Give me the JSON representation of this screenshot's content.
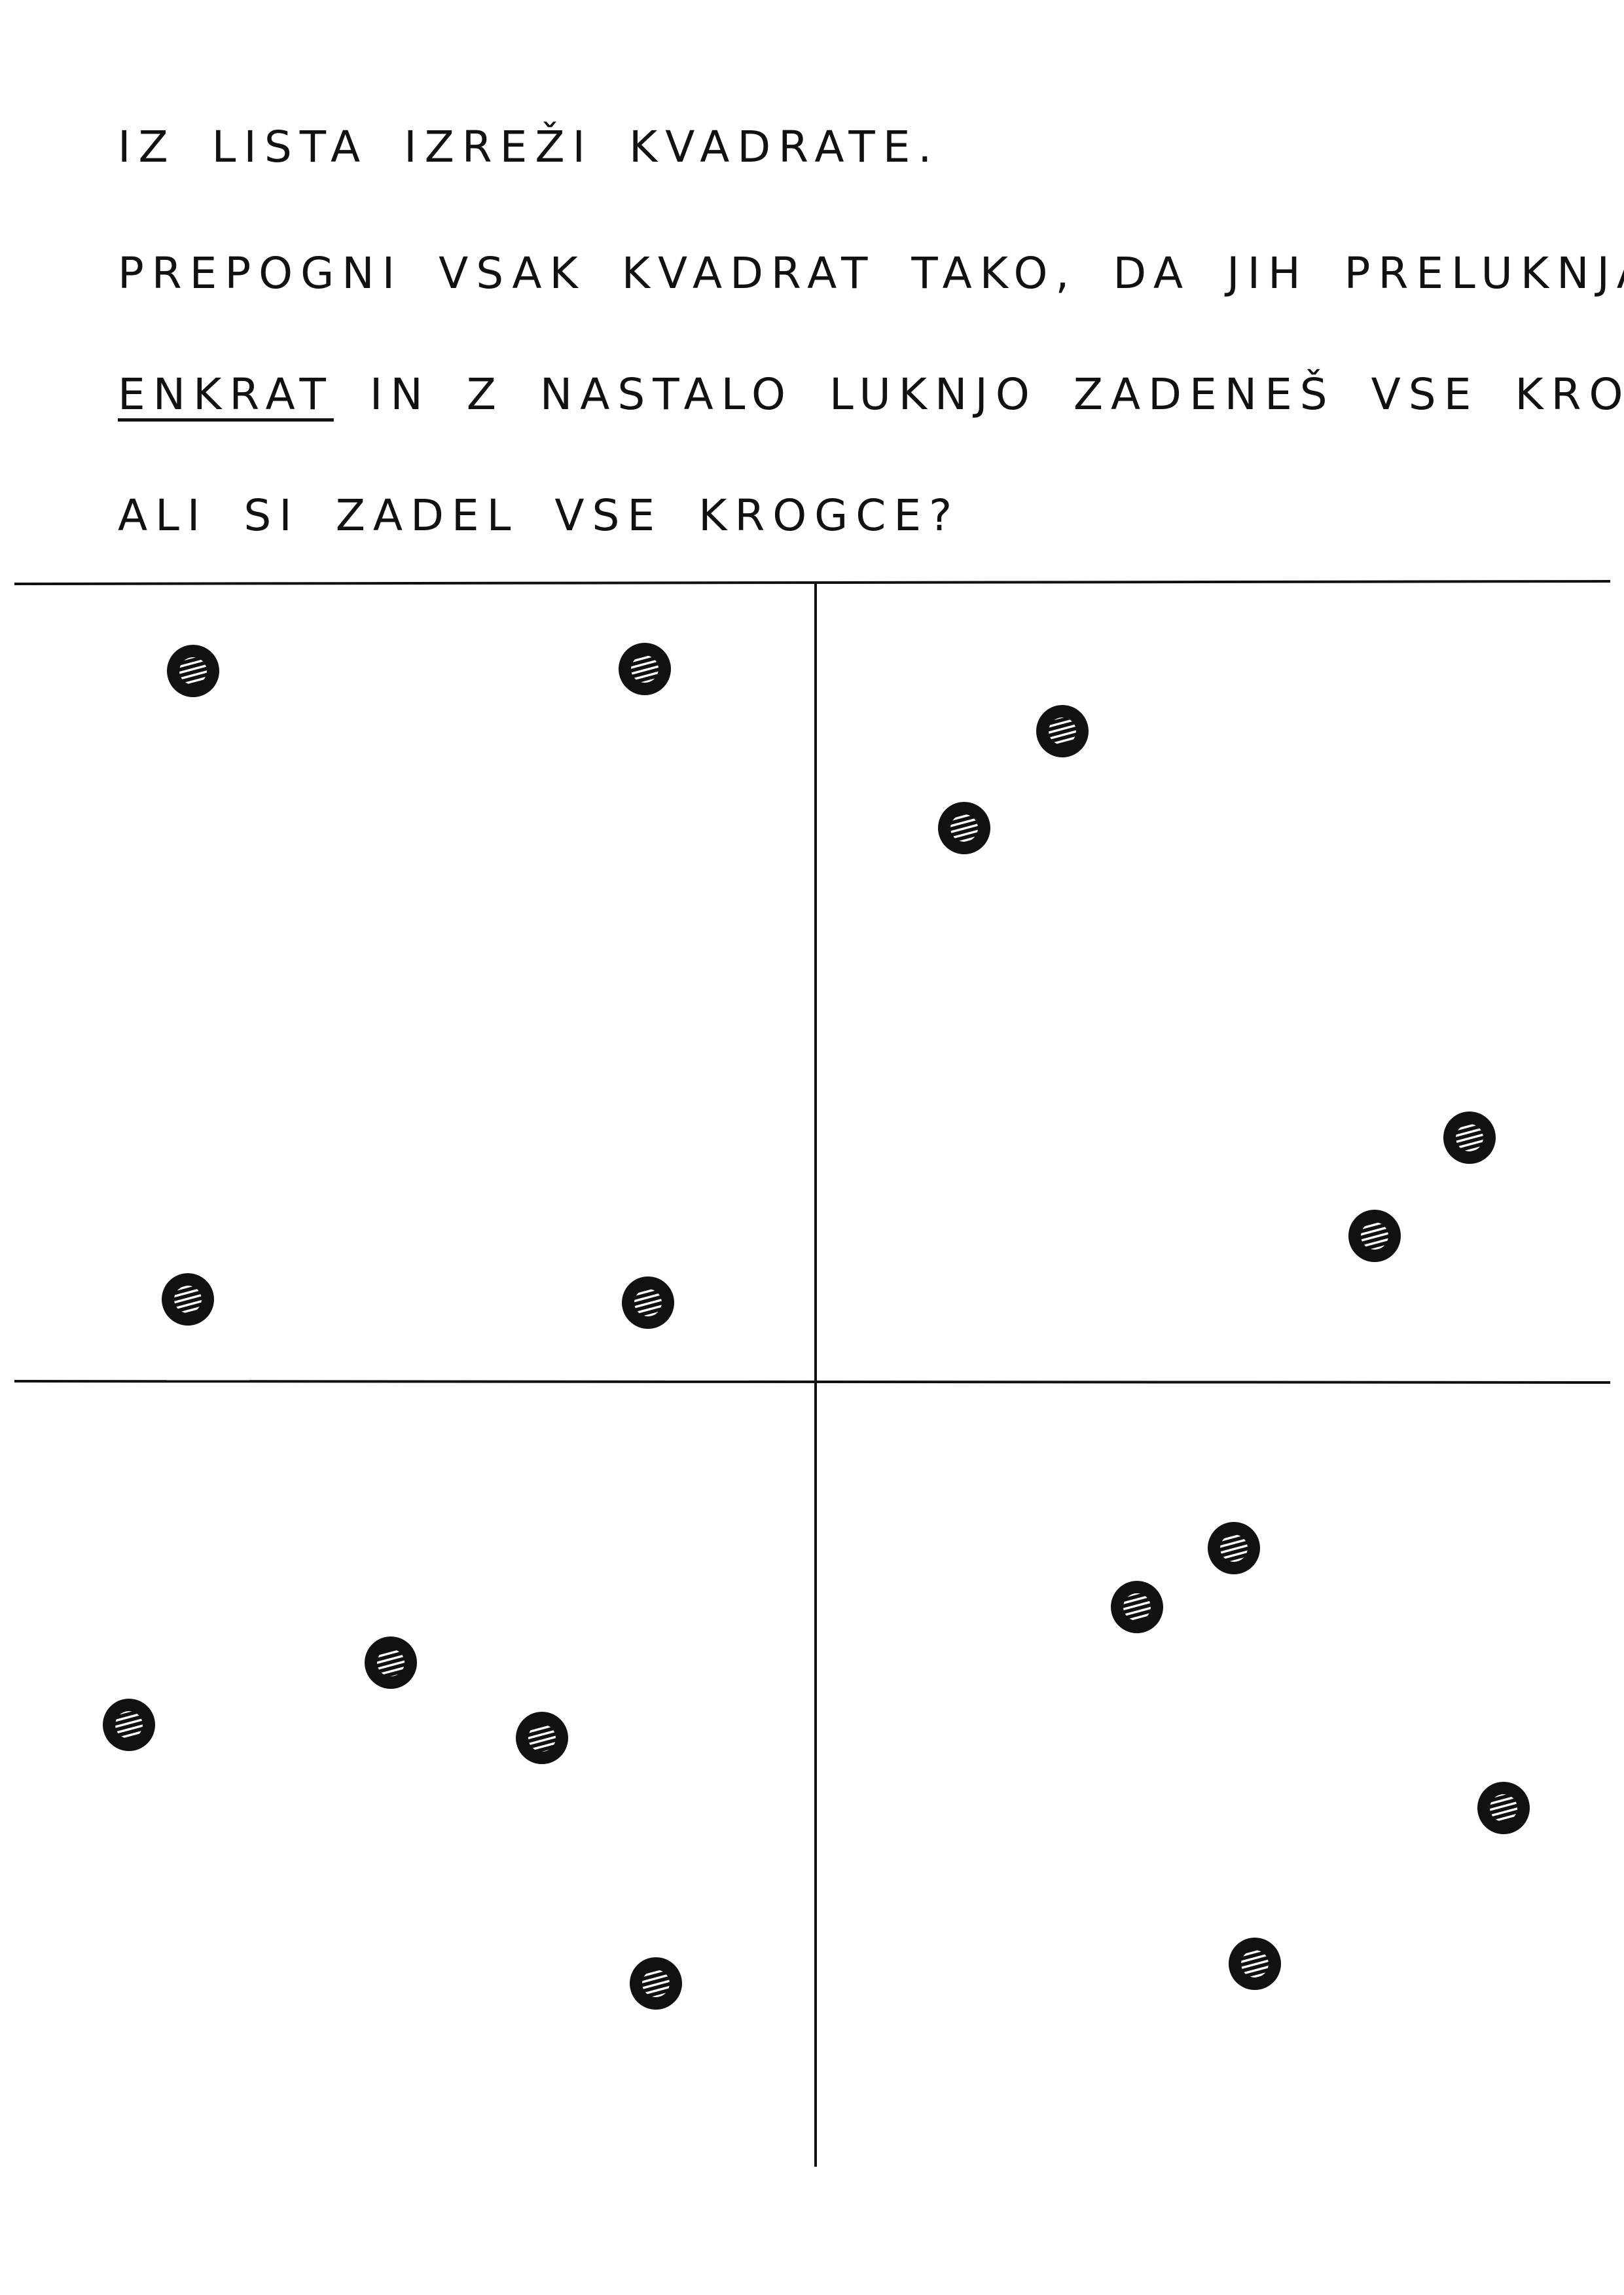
{
  "instructions": {
    "line1": "IZ LISTA IZREŽI KVADRATE.",
    "line2": "PREPOGNI VSAK KVADRAT TAKO, DA JIH PRELUKNJAŠ",
    "line3_emphasis": "ENKRAT",
    "line3_rest": "IN Z NASTALO LUKNJO ZADENEŠ VSE KROGCE.",
    "line4": "ALI SI ZADEL VSE KROGCE?"
  },
  "squares": [
    {
      "name": "top-left",
      "circle_count": 4
    },
    {
      "name": "top-right",
      "circle_count": 4
    },
    {
      "name": "bottom-left",
      "circle_count": 4
    },
    {
      "name": "bottom-right",
      "circle_count": 4
    }
  ],
  "colors": {
    "ink": "#111111",
    "hatch": "#ffffff",
    "paper": "#ffffff"
  }
}
